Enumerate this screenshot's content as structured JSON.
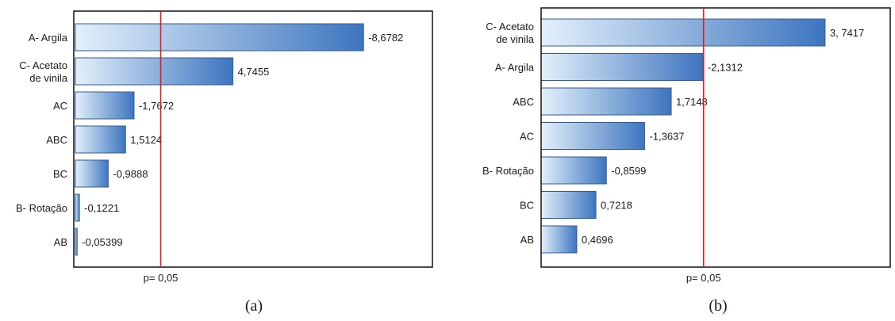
{
  "colors": {
    "bar_light": "#e3f0fb",
    "bar_dark": "#3d75bf",
    "bar_border": "#2f5d93",
    "reference_line": "#e02020",
    "frame": "#111111"
  },
  "chart_data": [
    {
      "type": "bar",
      "orientation": "horizontal",
      "caption": "(a)",
      "categories": [
        "A- Argila",
        "C- Acetato de vinila",
        "AC",
        "ABC",
        "BC",
        "B- Rotação",
        "AB"
      ],
      "category_lines": [
        [
          "A- Argila"
        ],
        [
          "C- Acetato",
          "de vinila"
        ],
        [
          "AC"
        ],
        [
          "ABC"
        ],
        [
          "BC"
        ],
        [
          "B- Rotação"
        ],
        [
          "AB"
        ]
      ],
      "values": [
        -8.6782,
        4.7455,
        -1.7672,
        1.5124,
        -0.9888,
        -0.1221,
        -0.05399
      ],
      "value_labels": [
        "-8,6782",
        "4,7455",
        "-1,7672",
        "1,5124",
        "-0,9888",
        "-0,1221",
        "-0,05399"
      ],
      "magnitude_range": [
        0,
        10.8
      ],
      "reference_value": 2.57,
      "reference_label": "p= 0,05",
      "grid": false,
      "legend": "none"
    },
    {
      "type": "bar",
      "orientation": "horizontal",
      "caption": "(b)",
      "categories": [
        "C- Acetato de vinila",
        "A- Argila",
        "ABC",
        "AC",
        "B- Rotação",
        "BC",
        "AB"
      ],
      "category_lines": [
        [
          "C- Acetato",
          "de vinila"
        ],
        [
          "A- Argila"
        ],
        [
          "ABC"
        ],
        [
          "AC"
        ],
        [
          "B- Rotação"
        ],
        [
          "BC"
        ],
        [
          "AB"
        ]
      ],
      "values": [
        3.7417,
        -2.1312,
        1.7148,
        -1.3637,
        -0.8599,
        0.7218,
        0.4696
      ],
      "value_labels": [
        "3, 7417",
        "-2,1312",
        "1,7148",
        "-1,3637",
        "-0,8599",
        "0,7218",
        "0,4696"
      ],
      "magnitude_range": [
        0,
        4.6
      ],
      "reference_value": 2.14,
      "reference_label": "p= 0,05",
      "grid": false,
      "legend": "none"
    }
  ]
}
